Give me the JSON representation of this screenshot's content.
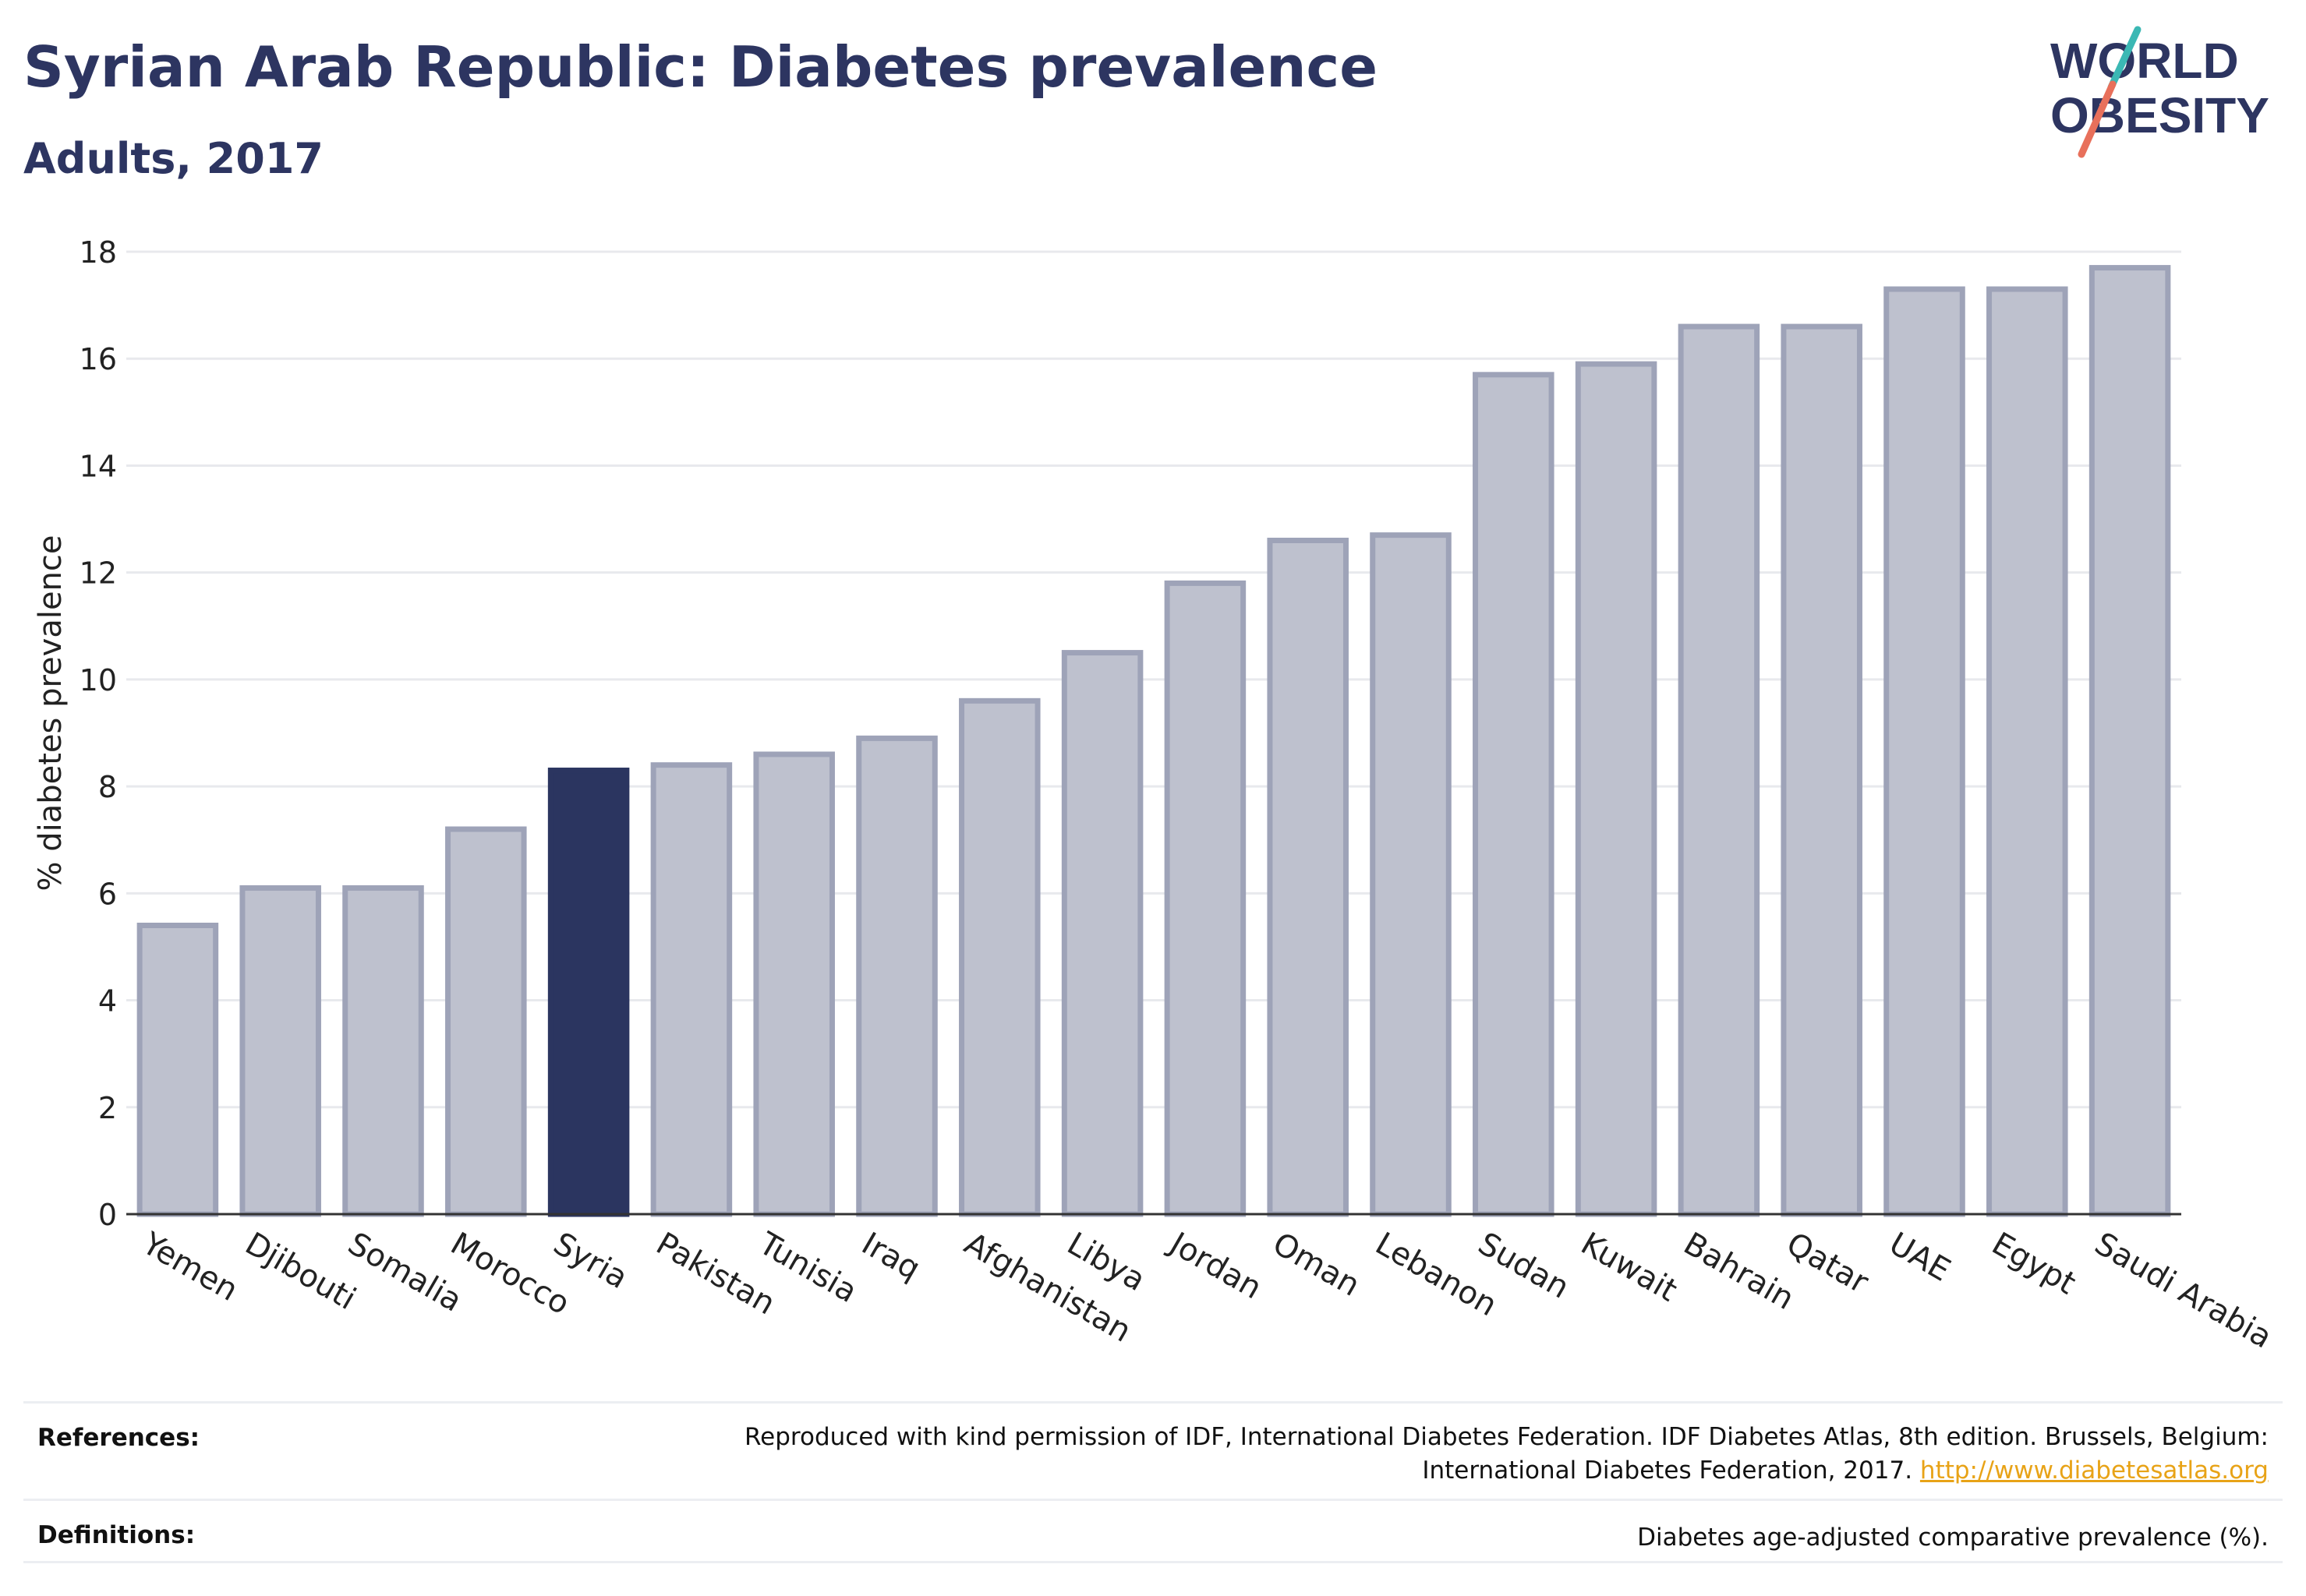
{
  "header": {
    "title": "Syrian Arab Republic: Diabetes prevalence",
    "subtitle": "Adults, 2017"
  },
  "logo": {
    "line1": "WORLD",
    "line2": "OBESITY"
  },
  "colors": {
    "highlight": "#2b3560",
    "bar_fill": "#bec1ce",
    "bar_stroke": "#9ea3b8",
    "grid": "#e8e9ed",
    "axis": "#333333",
    "logo_text": "#2d3561",
    "logo_teal": "#3bb8b4",
    "logo_coral": "#e8705b",
    "link": "#e8a317"
  },
  "chart_data": {
    "type": "bar",
    "categories": [
      "Yemen",
      "Djibouti",
      "Somalia",
      "Morocco",
      "Syria",
      "Pakistan",
      "Tunisia",
      "Iraq",
      "Afghanistan",
      "Libya",
      "Jordan",
      "Oman",
      "Lebanon",
      "Sudan",
      "Kuwait",
      "Bahrain",
      "Qatar",
      "UAE",
      "Egypt",
      "Saudi Arabia"
    ],
    "values": [
      5.4,
      6.1,
      6.1,
      7.2,
      8.3,
      8.4,
      8.6,
      8.9,
      9.6,
      10.5,
      11.8,
      12.6,
      12.7,
      15.7,
      15.9,
      16.6,
      16.6,
      17.3,
      17.3,
      17.7
    ],
    "highlight": "Syria",
    "ylabel": "% diabetes prevalence",
    "ylim": [
      0,
      18
    ],
    "yticks": [
      0,
      2,
      4,
      6,
      8,
      10,
      12,
      14,
      16,
      18
    ],
    "ytick_labels": [
      "0",
      "2",
      "4",
      "6",
      "8",
      "10",
      "12",
      "14",
      "16",
      "18"
    ],
    "grid": true
  },
  "footer": {
    "references_label": "References:",
    "references_line1": "Reproduced with kind permission of IDF, International Diabetes Federation. IDF Diabetes Atlas, 8th edition. Brussels, Belgium:",
    "references_line2": "International Diabetes Federation, 2017.",
    "references_link": "http://www.diabetesatlas.org",
    "definitions_label": "Definitions:",
    "definitions_text": "Diabetes age-adjusted comparative prevalence (%)."
  }
}
